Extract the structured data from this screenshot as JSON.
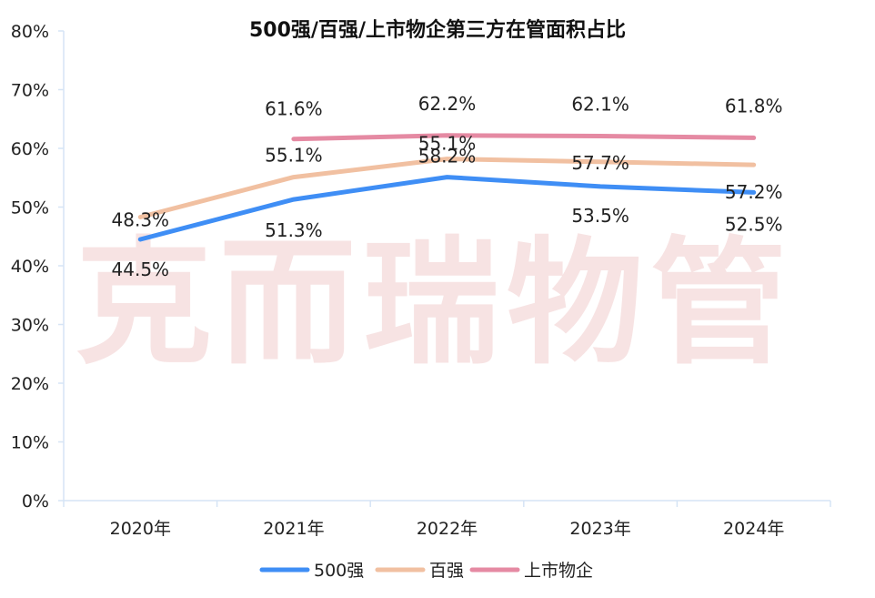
{
  "watermark": "克而瑞物管",
  "chart_data": {
    "type": "line",
    "title": "500强/百强/上市物企第三方在管面积占比",
    "categories": [
      "2020年",
      "2021年",
      "2022年",
      "2023年",
      "2024年"
    ],
    "ylim": [
      0,
      80
    ],
    "yticks": [
      0,
      10,
      20,
      30,
      40,
      50,
      60,
      70,
      80
    ],
    "ytick_labels": [
      "0%",
      "10%",
      "20%",
      "30%",
      "40%",
      "50%",
      "60%",
      "70%",
      "80%"
    ],
    "grid": false,
    "legend_position": "bottom",
    "series": [
      {
        "name": "500强",
        "color": "#3f8ef5",
        "values": [
          44.5,
          51.3,
          55.1,
          53.5,
          52.5
        ],
        "labels": [
          "44.5%",
          "51.3%",
          "55.1%",
          "53.5%",
          "52.5%"
        ]
      },
      {
        "name": "百强",
        "color": "#f1c0a1",
        "values": [
          48.3,
          55.1,
          58.2,
          57.7,
          57.2
        ],
        "labels": [
          "48.3%",
          "55.1%",
          "58.2%",
          "57.7%",
          "57.2%"
        ]
      },
      {
        "name": "上市物企",
        "color": "#e58aa3",
        "values": [
          null,
          61.6,
          62.2,
          62.1,
          61.8
        ],
        "labels": [
          null,
          "61.6%",
          "62.2%",
          "62.1%",
          "61.8%"
        ]
      }
    ]
  }
}
